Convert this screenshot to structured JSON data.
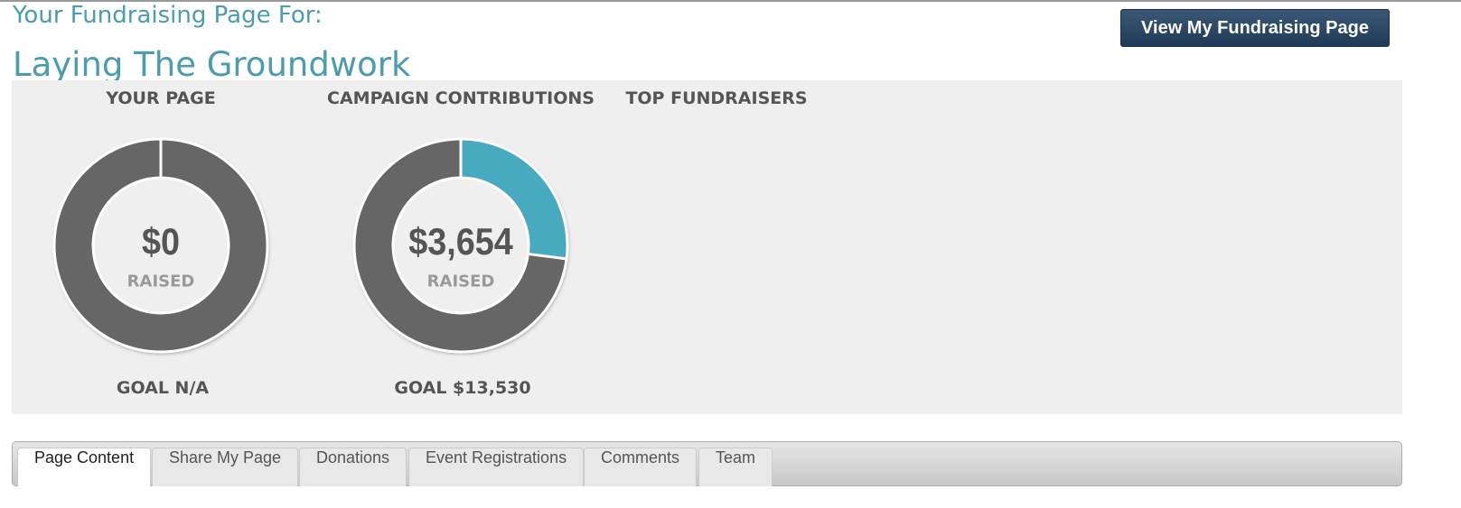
{
  "header": {
    "subtitle": "Your Fundraising Page For:",
    "title": "Laying The Groundwork",
    "button": "View My Fundraising Page"
  },
  "colors": {
    "raised": "#47aabf",
    "remaining": "#666666"
  },
  "panels": [
    {
      "heading": "YOUR PAGE",
      "raised": 0,
      "raised_label": "$0",
      "raised_caption": "RAISED",
      "goal_label": "GOAL N/A"
    },
    {
      "heading": "CAMPAIGN CONTRIBUTIONS",
      "raised": 3654,
      "raised_label": "$3,654",
      "raised_caption": "RAISED",
      "goal": 13530,
      "goal_label": "GOAL $13,530"
    }
  ],
  "top_fundraisers": {
    "heading": "TOP FUNDRAISERS"
  },
  "tabs": [
    "Page Content",
    "Share My Page",
    "Donations",
    "Event Registrations",
    "Comments",
    "Team"
  ]
}
